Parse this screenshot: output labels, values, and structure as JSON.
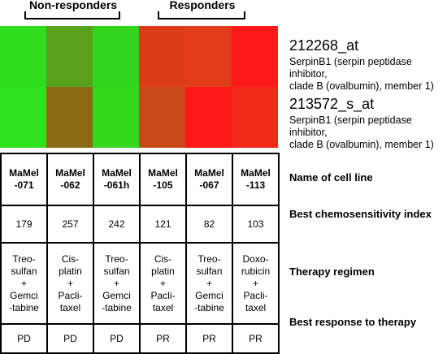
{
  "groups": {
    "non_responders": "Non-responders",
    "responders": "Responders"
  },
  "heatmap": {
    "rows": [
      {
        "probe": "212268_at",
        "description": [
          "SerpinB1 (serpin peptidase inhibitor,",
          "clade B (ovalbumin), member 1)"
        ],
        "colors": [
          "#2fdc1e",
          "#5aa21e",
          "#33d41e",
          "#dc3b1a",
          "#e03c1a",
          "#ff1a1a"
        ]
      },
      {
        "probe": "213572_s_at",
        "description": [
          "SerpinB1 (serpin peptidase inhibitor,",
          "clade B (ovalbumin), member 1)"
        ],
        "colors": [
          "#2fe21c",
          "#8a6a14",
          "#36d81e",
          "#c94a18",
          "#ff1818",
          "#ef2a18"
        ]
      }
    ]
  },
  "table": {
    "cell_lines": [
      "MaMel\n-071",
      "MaMel\n-062",
      "MaMel\n-061h",
      "MaMel\n-105",
      "MaMel\n-067",
      "MaMel\n-113"
    ],
    "chemosensitivity": [
      "179",
      "257",
      "242",
      "121",
      "82",
      "103"
    ],
    "therapy": [
      "Treo-\nsulfan\n+\nGemci\n-tabine",
      "Cis-\nplatin\n+\nPacli-\ntaxel",
      "Treo-\nsulfan\n+\nGemci\n-tabine",
      "Cis-\nplatin\n+\nPacli-\ntaxel",
      "Treo-\nsulfan\n+\nGemci\n-tabine",
      "Doxo-\nrubicin\n+\nPacli-\ntaxel"
    ],
    "response": [
      "PD",
      "PD",
      "PD",
      "PR",
      "PR",
      "PR"
    ]
  },
  "row_labels": {
    "name": "Name of cell line",
    "chemo": "Best chemosensitivity index",
    "therapy": "Therapy regimen",
    "response": "Best response to therapy"
  }
}
